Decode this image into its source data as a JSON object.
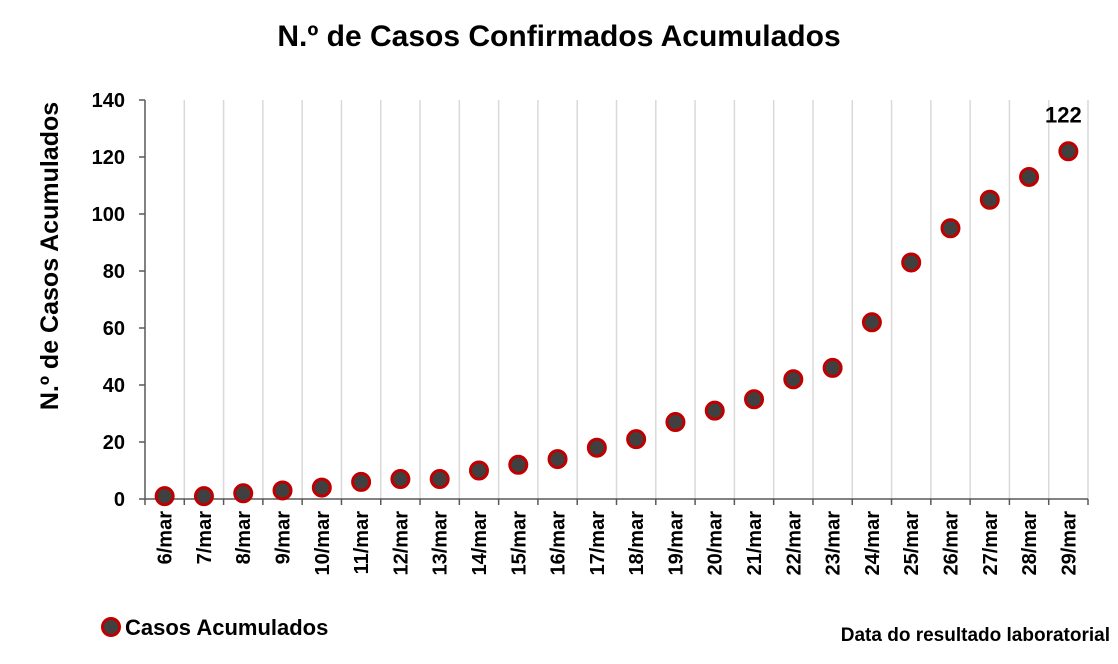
{
  "chart_data": {
    "type": "scatter",
    "title": "N.º de Casos Confirmados Acumulados",
    "xlabel": "Data do resultado laboratorial",
    "ylabel": "N.º de Casos Acumulados",
    "ylim": [
      0,
      140
    ],
    "yticks": [
      0,
      20,
      40,
      60,
      80,
      100,
      120,
      140
    ],
    "categories": [
      "6/mar",
      "7/mar",
      "8/mar",
      "9/mar",
      "10/mar",
      "11/mar",
      "12/mar",
      "13/mar",
      "14/mar",
      "15/mar",
      "16/mar",
      "17/mar",
      "18/mar",
      "19/mar",
      "20/mar",
      "21/mar",
      "22/mar",
      "23/mar",
      "24/mar",
      "25/mar",
      "26/mar",
      "27/mar",
      "28/mar",
      "29/mar"
    ],
    "series": [
      {
        "name": "Casos Acumulados",
        "values": [
          1,
          1,
          2,
          3,
          4,
          6,
          7,
          7,
          10,
          12,
          14,
          18,
          21,
          27,
          31,
          35,
          42,
          46,
          62,
          83,
          95,
          105,
          113,
          122
        ],
        "marker_fill": "#404040",
        "marker_edge": "#c00000"
      }
    ],
    "data_labels": [
      {
        "category": "29/mar",
        "text": "122"
      }
    ],
    "grid": {
      "vertical": true,
      "horizontal": false,
      "color": "#d9d9d9"
    },
    "legend": {
      "placement": "bottom-left"
    }
  }
}
